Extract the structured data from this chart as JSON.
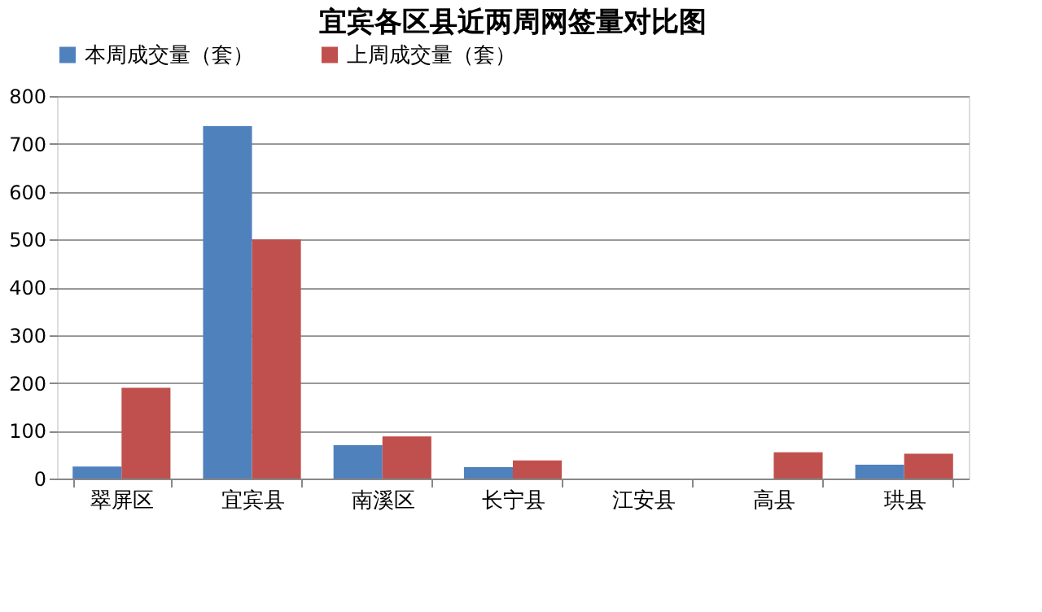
{
  "chart_data": {
    "type": "bar",
    "title": "宜宾各区县近两周网签量对比图",
    "categories": [
      "翠屏区",
      "宜宾县",
      "南溪区",
      "长宁县",
      "江安县",
      "高县",
      "珙县"
    ],
    "series": [
      {
        "name": "本周成交量（套）",
        "color": "#4f81bd",
        "values": [
          25,
          737,
          70,
          24,
          0,
          null,
          29
        ]
      },
      {
        "name": "上周成交量（套）",
        "color": "#c0504d",
        "values": [
          190,
          500,
          88,
          38,
          0,
          55,
          52
        ]
      }
    ],
    "ylim": [
      0,
      800
    ],
    "yticks": [
      0,
      100,
      200,
      300,
      400,
      500,
      600,
      700,
      800
    ],
    "grid": "y",
    "legend": "top"
  }
}
